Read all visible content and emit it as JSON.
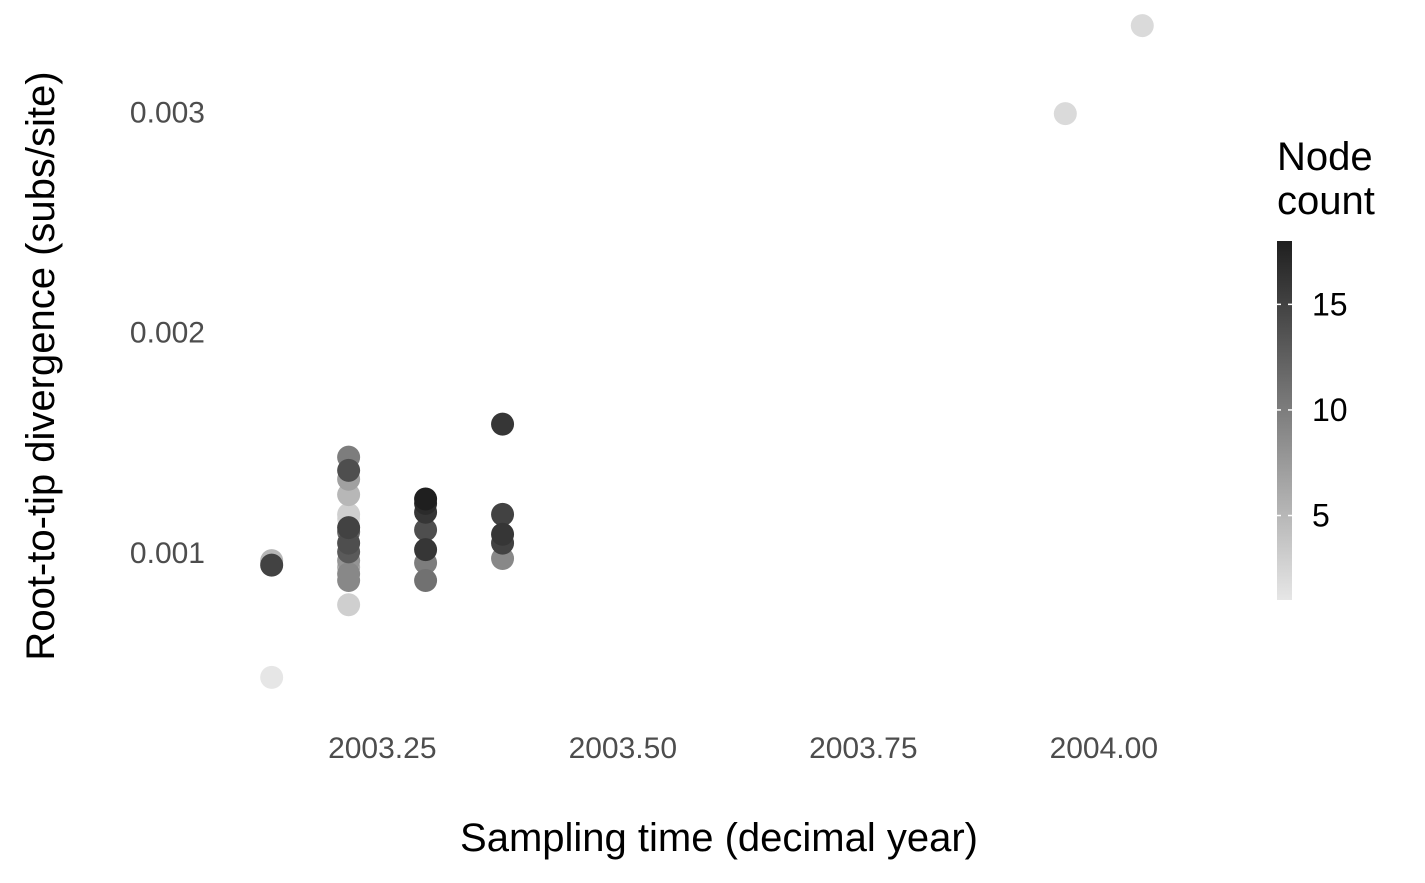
{
  "chart_data": {
    "type": "scatter",
    "xlabel": "Sampling time (decimal year)",
    "ylabel": "Root-to-tip divergence (subs/site)",
    "xlim": [
      2003.1,
      2004.1
    ],
    "ylim": [
      0.00035,
      0.00337
    ],
    "x_ticks": [
      2003.25,
      2003.5,
      2003.75,
      2004.0
    ],
    "x_tick_labels": [
      "2003.25",
      "2003.50",
      "2003.75",
      "2004.00"
    ],
    "y_ticks": [
      0.001,
      0.002,
      0.003
    ],
    "y_tick_labels": [
      "0.001",
      "0.002",
      "0.003"
    ],
    "grid": false,
    "legend": {
      "title_lines": [
        "Node",
        "count"
      ],
      "placement": "right",
      "range": [
        1,
        18
      ],
      "ticks": [
        5,
        10,
        15
      ],
      "tick_labels": [
        "5",
        "10",
        "15"
      ],
      "color_low": "#e6e6e6",
      "color_high": "#1f1f1f"
    },
    "points": [
      {
        "x": 2003.135,
        "y": 0.00094,
        "count": 15
      },
      {
        "x": 2003.135,
        "y": 0.00096,
        "count": 5
      },
      {
        "x": 2003.135,
        "y": 0.00043,
        "count": 1
      },
      {
        "x": 2003.215,
        "y": 0.00143,
        "count": 10
      },
      {
        "x": 2003.215,
        "y": 0.00137,
        "count": 14
      },
      {
        "x": 2003.215,
        "y": 0.00133,
        "count": 7
      },
      {
        "x": 2003.215,
        "y": 0.00126,
        "count": 5
      },
      {
        "x": 2003.215,
        "y": 0.00117,
        "count": 3
      },
      {
        "x": 2003.215,
        "y": 0.00115,
        "count": 2
      },
      {
        "x": 2003.215,
        "y": 0.00111,
        "count": 15
      },
      {
        "x": 2003.215,
        "y": 0.00109,
        "count": 12
      },
      {
        "x": 2003.215,
        "y": 0.00104,
        "count": 14
      },
      {
        "x": 2003.215,
        "y": 0.001,
        "count": 13
      },
      {
        "x": 2003.215,
        "y": 0.00096,
        "count": 8
      },
      {
        "x": 2003.215,
        "y": 0.00093,
        "count": 6
      },
      {
        "x": 2003.215,
        "y": 0.0009,
        "count": 9
      },
      {
        "x": 2003.215,
        "y": 0.00087,
        "count": 9
      },
      {
        "x": 2003.215,
        "y": 0.00076,
        "count": 3
      },
      {
        "x": 2003.295,
        "y": 0.00124,
        "count": 18
      },
      {
        "x": 2003.295,
        "y": 0.00122,
        "count": 17
      },
      {
        "x": 2003.295,
        "y": 0.00118,
        "count": 16
      },
      {
        "x": 2003.295,
        "y": 0.0011,
        "count": 14
      },
      {
        "x": 2003.295,
        "y": 0.00101,
        "count": 16
      },
      {
        "x": 2003.295,
        "y": 0.00095,
        "count": 10
      },
      {
        "x": 2003.295,
        "y": 0.00087,
        "count": 11
      },
      {
        "x": 2003.375,
        "y": 0.00158,
        "count": 16
      },
      {
        "x": 2003.375,
        "y": 0.00117,
        "count": 15
      },
      {
        "x": 2003.375,
        "y": 0.00108,
        "count": 16
      },
      {
        "x": 2003.375,
        "y": 0.00104,
        "count": 15
      },
      {
        "x": 2003.375,
        "y": 0.00097,
        "count": 9
      },
      {
        "x": 2003.96,
        "y": 0.00299,
        "count": 2
      },
      {
        "x": 2004.04,
        "y": 0.00339,
        "count": 2
      }
    ]
  }
}
